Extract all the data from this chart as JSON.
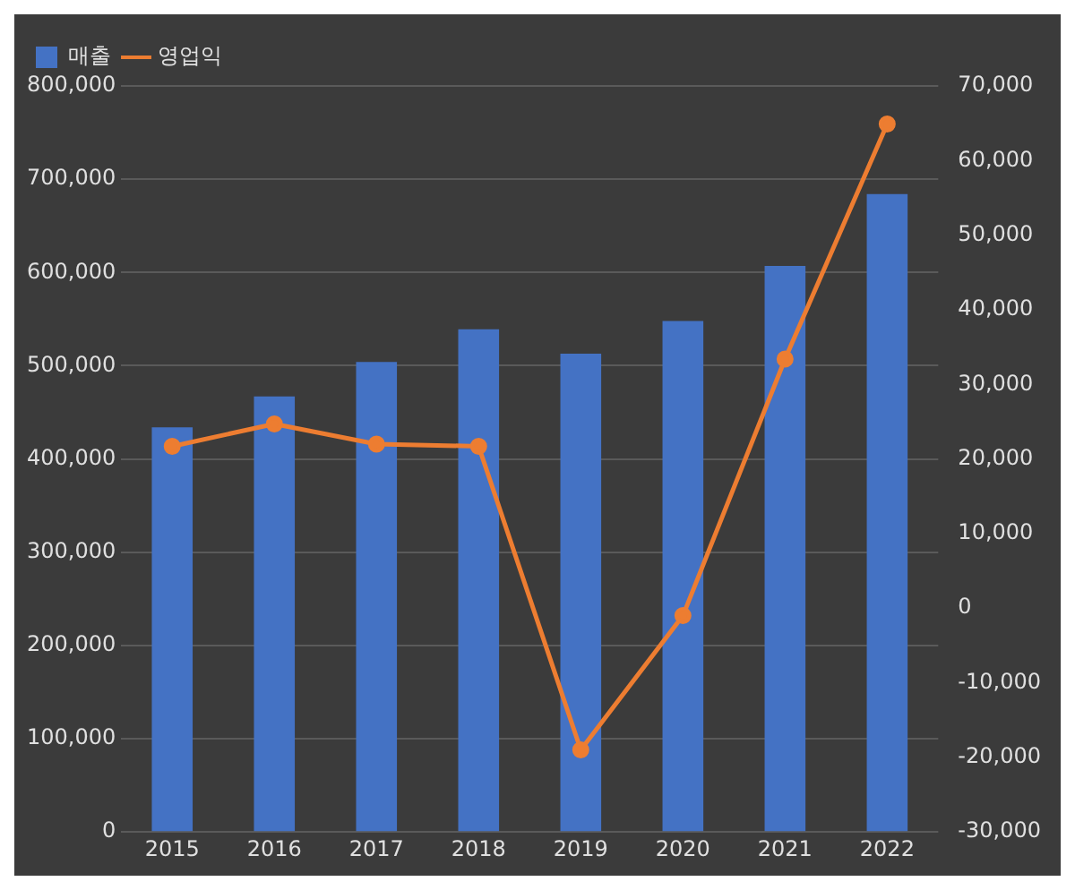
{
  "chart_data": {
    "type": "bar",
    "categories": [
      "2015",
      "2016",
      "2017",
      "2018",
      "2019",
      "2020",
      "2021",
      "2022"
    ],
    "series": [
      {
        "name": "매출",
        "color": "#4472c4",
        "values": [
          434000,
          467000,
          504000,
          539000,
          513000,
          548000,
          607000,
          684000
        ]
      },
      {
        "name": "영업익",
        "type": "line",
        "axis": "y2",
        "color": "#ed7d31",
        "marker": "circle",
        "values": [
          21700,
          24700,
          22000,
          21700,
          -19000,
          -1000,
          33400,
          64900
        ]
      }
    ],
    "ylim": [
      0,
      800000
    ],
    "yticks": [
      0,
      {
        "value": 100000,
        "label": "100,000"
      },
      {
        "value": 200000,
        "label": "200,000"
      },
      {
        "value": 300000,
        "label": "300,000"
      },
      {
        "value": 400000,
        "label": "400,000"
      },
      {
        "value": 500000,
        "label": "500,000"
      },
      {
        "value": 600000,
        "label": "600,000"
      },
      {
        "value": 700000,
        "label": "700,000"
      },
      {
        "value": 800000,
        "label": "800,000"
      }
    ],
    "y2lim": [
      -30000,
      70000
    ],
    "y2ticks": [
      {
        "value": -30000,
        "label": "-30,000"
      },
      {
        "value": -20000,
        "label": "-20,000"
      },
      {
        "value": -10000,
        "label": "-10,000"
      },
      0,
      {
        "value": 10000,
        "label": "10,000"
      },
      {
        "value": 20000,
        "label": "20,000"
      },
      {
        "value": 30000,
        "label": "30,000"
      },
      {
        "value": 40000,
        "label": "40,000"
      },
      {
        "value": 50000,
        "label": "50,000"
      },
      {
        "value": 60000,
        "label": "60,000"
      },
      {
        "value": 70000,
        "label": "70,000"
      }
    ],
    "grid": "y",
    "legend": "top left"
  }
}
